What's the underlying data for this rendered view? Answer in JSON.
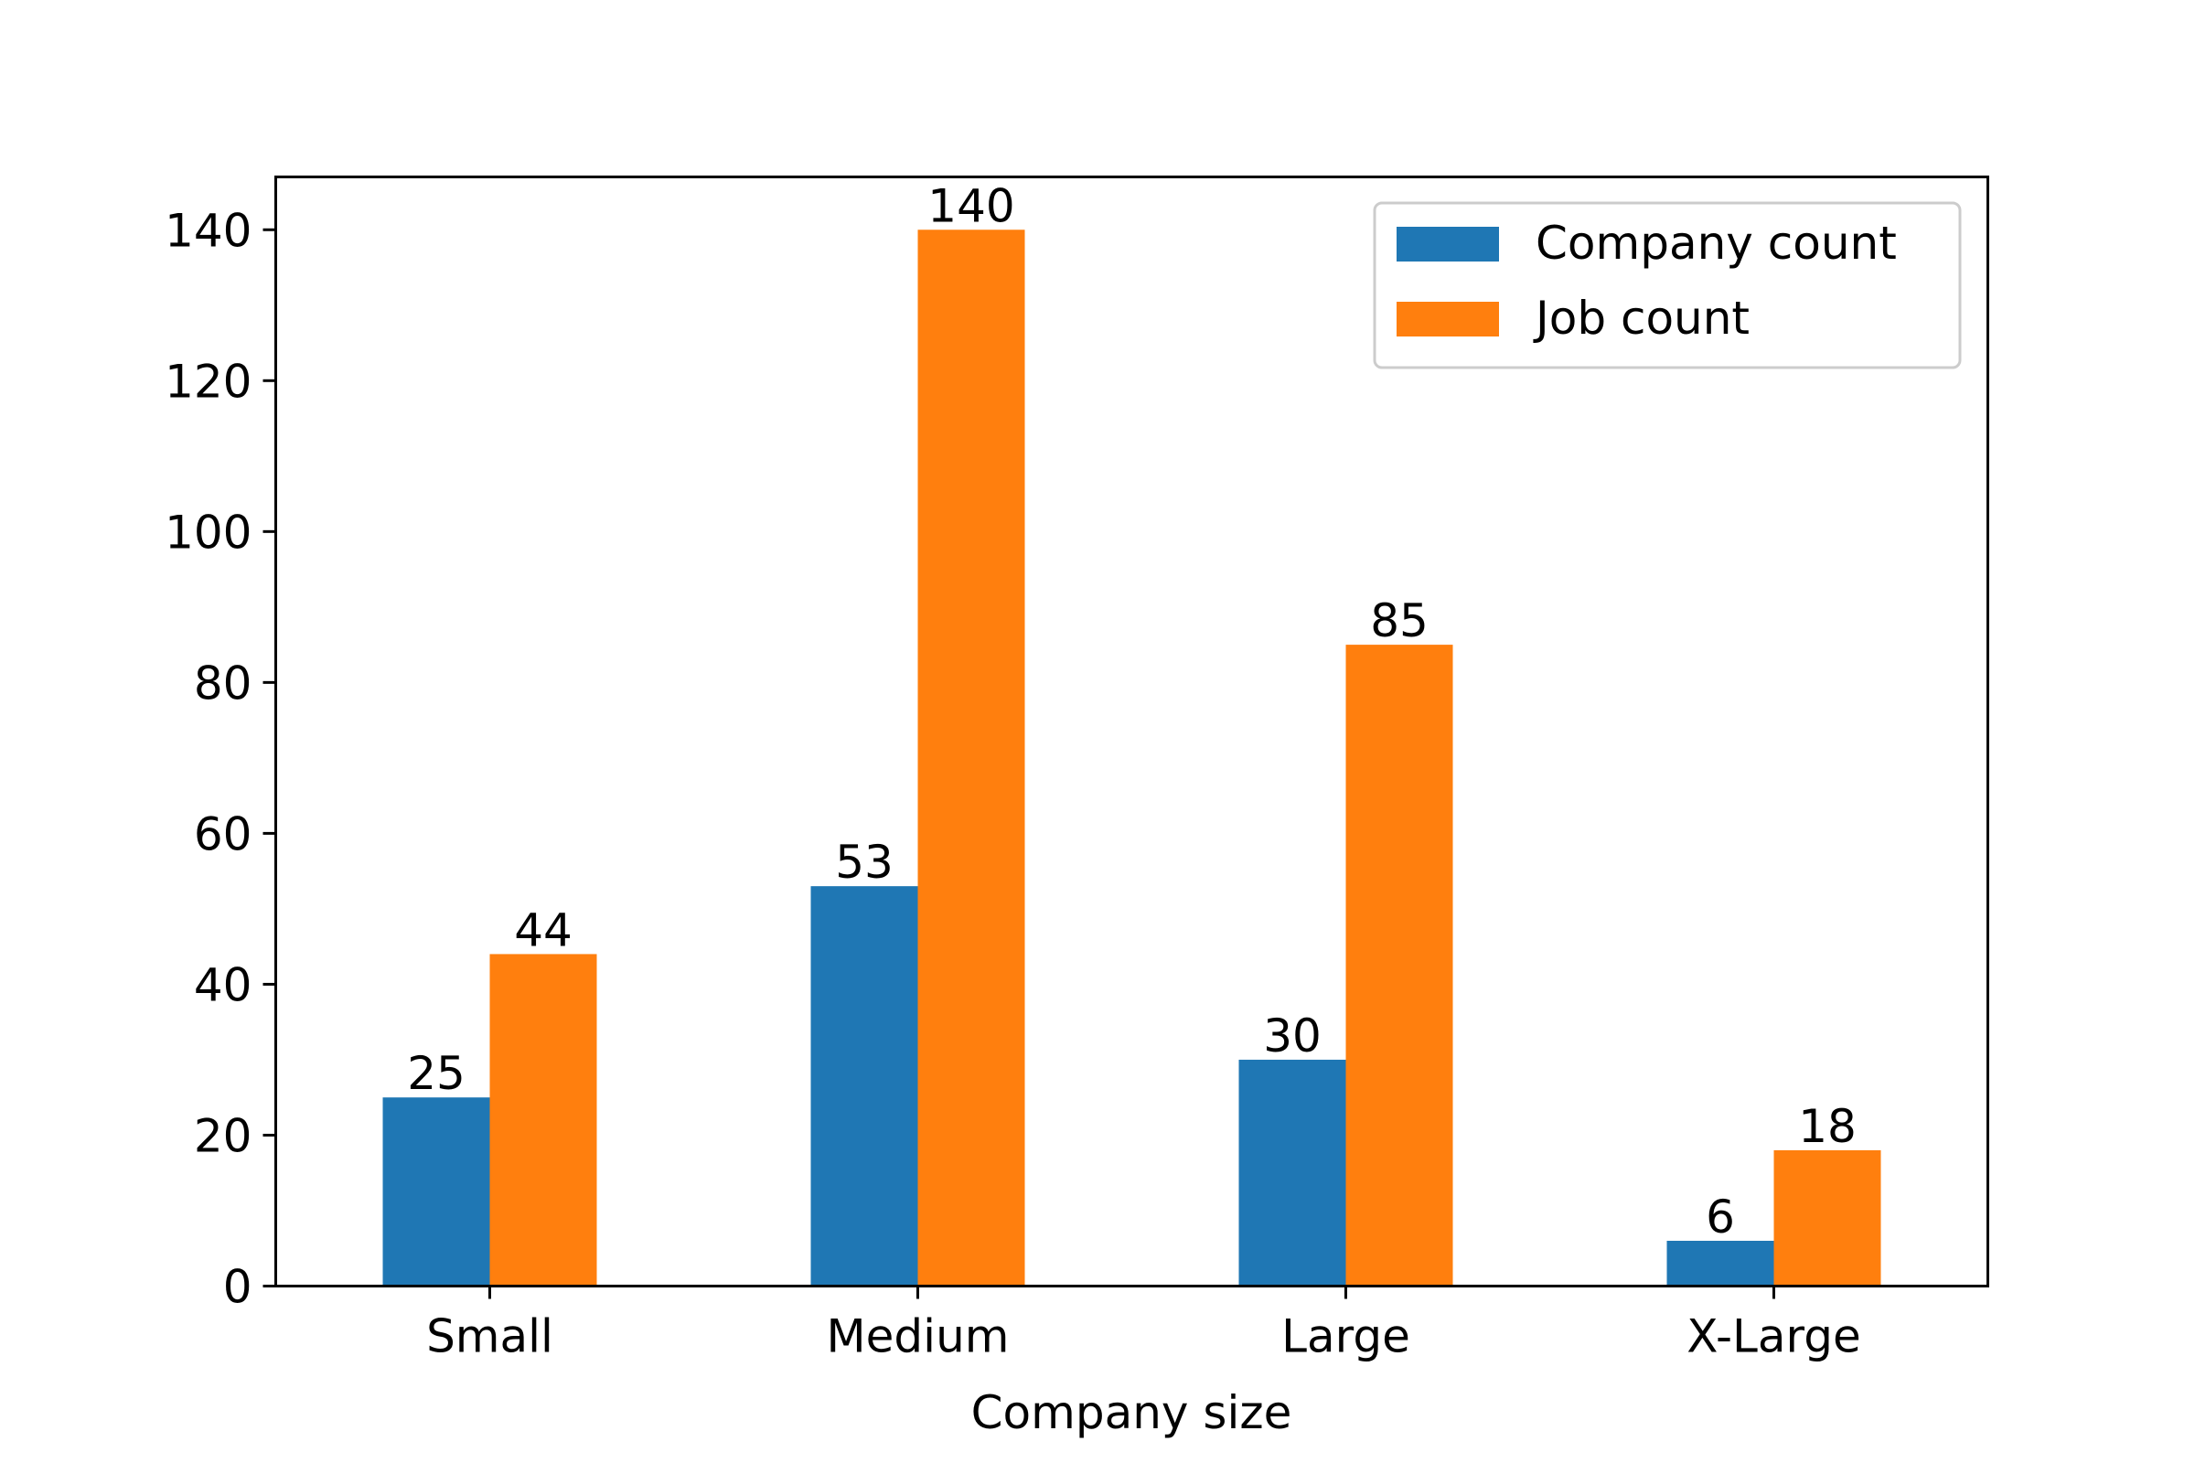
{
  "chart_data": {
    "type": "bar",
    "title": "",
    "xlabel": "Company size",
    "ylabel": "",
    "categories": [
      "Small",
      "Medium",
      "Large",
      "X-Large"
    ],
    "series": [
      {
        "name": "Company count",
        "values": [
          25,
          53,
          30,
          6
        ],
        "color": "#1f77b4"
      },
      {
        "name": "Job count",
        "values": [
          44,
          140,
          85,
          18
        ],
        "color": "#ff7f0e"
      }
    ],
    "ylim": [
      0,
      147
    ],
    "yticks": [
      0,
      20,
      40,
      60,
      80,
      100,
      120,
      140
    ],
    "grid": false,
    "legend": "top-right",
    "data_labels": true
  }
}
